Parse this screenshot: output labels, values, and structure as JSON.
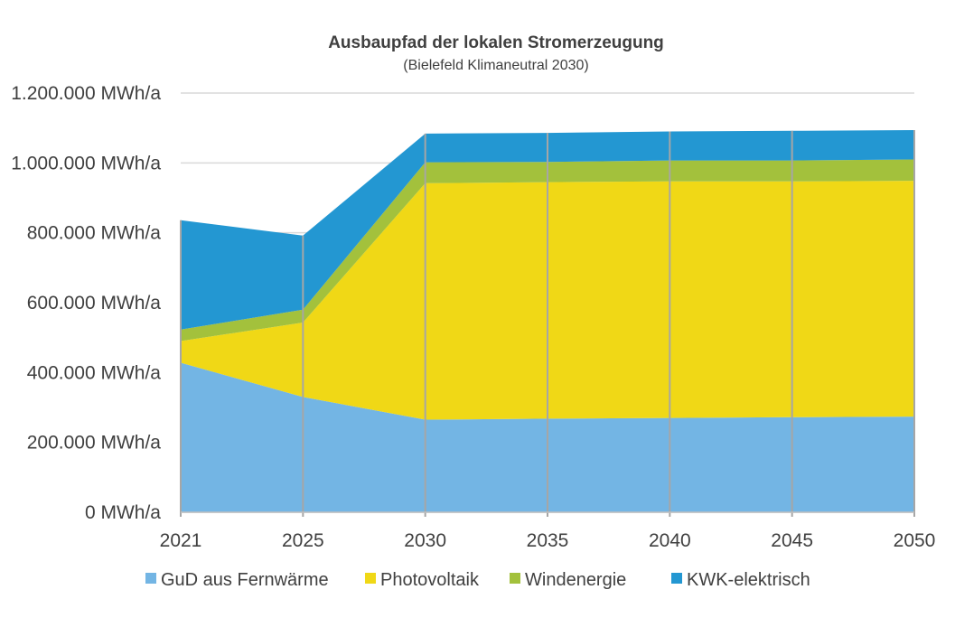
{
  "chart_data": {
    "type": "area",
    "stacked": true,
    "title": "Ausbaupfad der lokalen Stromerzeugung",
    "subtitle": "(Bielefeld Klimaneutral 2030)",
    "x": [
      "2021",
      "2025",
      "2030",
      "2035",
      "2040",
      "2045",
      "2050"
    ],
    "ylim": [
      0,
      1200000
    ],
    "y_ticks": [
      0,
      200000,
      400000,
      600000,
      800000,
      1000000,
      1200000
    ],
    "y_tick_labels": [
      "0 MWh/a",
      "200.000 MWh/a",
      "400.000 MWh/a",
      "600.000 MWh/a",
      "800.000 MWh/a",
      "1.000.000 MWh/a",
      "1.200.000 MWh/a"
    ],
    "series": [
      {
        "name": "GuD aus Fernwärme",
        "color": "#73b5e4",
        "values": [
          428000,
          330000,
          265000,
          268000,
          270000,
          272000,
          274000
        ]
      },
      {
        "name": "Photovoltaik",
        "color": "#f0d816",
        "values": [
          62000,
          213000,
          677000,
          677000,
          677000,
          675000,
          675000
        ]
      },
      {
        "name": "Windenergie",
        "color": "#a3c13c",
        "values": [
          33000,
          37000,
          60000,
          58000,
          60000,
          60000,
          61000
        ]
      },
      {
        "name": "KWK-elektrisch",
        "color": "#2397d2",
        "values": [
          313000,
          212000,
          82000,
          83000,
          83000,
          85000,
          84000
        ]
      }
    ],
    "grid": "horizontal",
    "legend_position": "bottom"
  }
}
